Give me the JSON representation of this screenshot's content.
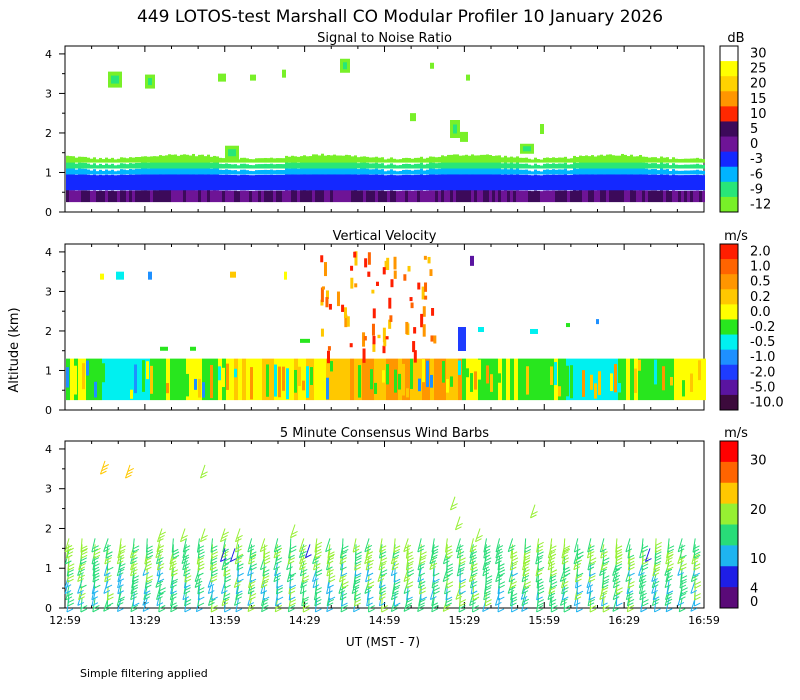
{
  "title": "449 LOTOS-test Marshall CO Modular Profiler 10 January 2026",
  "ylabel": "Altitude (km)",
  "xlabel": "UT  (MST - 7)",
  "footnote": "Simple filtering applied",
  "chart_data": [
    {
      "type": "heatmap",
      "title": "Signal to Noise Ratio",
      "unit": "dB",
      "xlim": [
        12.983,
        16.983
      ],
      "ylim": [
        0,
        4.2
      ],
      "x_ticks": [
        "12:59",
        "13:29",
        "13:59",
        "14:29",
        "14:59",
        "15:29",
        "15:59",
        "16:29",
        "16:59"
      ],
      "y_ticks": [
        "0",
        "1",
        "2",
        "3",
        "4"
      ],
      "colorbar_labels": [
        "30",
        "25",
        "20",
        "15",
        "10",
        "5",
        "0",
        "-3",
        "-6",
        "-9",
        "-12"
      ],
      "colorbar_colors": [
        "#ffffff",
        "#ffff00",
        "#ffd200",
        "#ff9600",
        "#ff2800",
        "#3c0a5a",
        "#6e1496",
        "#1428ff",
        "#00b4ff",
        "#28e678",
        "#78f028"
      ],
      "layers": [
        {
          "altitude_km": [
            0.25,
            0.55
          ],
          "snr_db": 2
        },
        {
          "altitude_km": [
            0.55,
            0.95
          ],
          "snr_db": -1
        },
        {
          "altitude_km": [
            0.95,
            1.1
          ],
          "snr_db": -4
        },
        {
          "altitude_km": [
            1.1,
            1.25
          ],
          "snr_db": -7
        },
        {
          "altitude_km": [
            1.25,
            1.4
          ],
          "snr_db": -11
        }
      ]
    },
    {
      "type": "heatmap",
      "title": "Vertical Velocity",
      "unit": "m/s",
      "xlim": [
        12.983,
        16.983
      ],
      "ylim": [
        0,
        4.2
      ],
      "x_ticks": [
        "12:59",
        "13:29",
        "13:59",
        "14:29",
        "14:59",
        "15:29",
        "15:59",
        "16:29",
        "16:59"
      ],
      "y_ticks": [
        "0",
        "1",
        "2",
        "3",
        "4"
      ],
      "colorbar_labels": [
        "2.0",
        "1.0",
        "0.5",
        "0.2",
        "0.0",
        "-0.2",
        "-0.5",
        "-1.0",
        "-2.0",
        "-5.0",
        "-10.0"
      ],
      "colorbar_colors": [
        "#ff1e00",
        "#ff6400",
        "#ff9600",
        "#ffc800",
        "#ffff00",
        "#28e61e",
        "#00f0f0",
        "#1e90ff",
        "#1e3cff",
        "#5a14a0",
        "#3c0a3c"
      ],
      "boundary_layer_top_km": 1.3
    },
    {
      "type": "scatter",
      "title": "5 Minute Consensus Wind Barbs",
      "unit": "m/s",
      "xlim": [
        12.983,
        16.983
      ],
      "ylim": [
        0,
        4.2
      ],
      "x_ticks": [
        "12:59",
        "13:29",
        "13:59",
        "14:29",
        "14:59",
        "15:29",
        "15:59",
        "16:29",
        "16:59"
      ],
      "y_ticks": [
        "0",
        "1",
        "2",
        "3",
        "4"
      ],
      "colorbar_labels": [
        "30",
        "20",
        "10",
        "4",
        "0"
      ],
      "colorbar_values": [
        30,
        20,
        10,
        4,
        0
      ],
      "colorbar_colors": [
        "#ff0000",
        "#ff6400",
        "#ffc800",
        "#96f032",
        "#28dc78",
        "#1eb4f0",
        "#1e1ee6",
        "#5a0a78"
      ],
      "barb_time_step_min": 5,
      "barb_altitude_range_km": [
        0.25,
        1.75
      ]
    }
  ]
}
